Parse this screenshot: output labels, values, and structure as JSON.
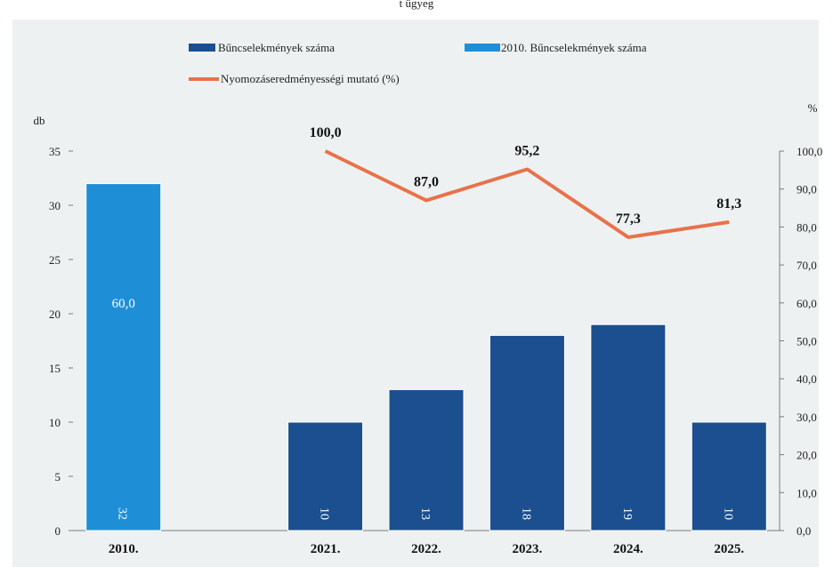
{
  "header_fragment": "t ügyeg",
  "legend": {
    "series1": "Bűncselekmények száma",
    "series2": "2010. Bűncselekmények száma",
    "series3": "Nyomozáseredményességi mutató (%)"
  },
  "axis_units": {
    "left": "db",
    "right": "%"
  },
  "colors": {
    "bar_2010": "#1E8FD6",
    "bar_years": "#1B4F8F",
    "line": "#E8724A",
    "plot_bg": "#EEF1F1"
  },
  "chart_data": {
    "type": "bar",
    "categories": [
      "2010.",
      "",
      "2021.",
      "2022.",
      "2023.",
      "2024.",
      "2025."
    ],
    "series": [
      {
        "name": "Bűncselekmények száma",
        "values": [
          null,
          null,
          10,
          13,
          18,
          19,
          10
        ],
        "labels": [
          "",
          "",
          "10",
          "13",
          "18",
          "19",
          "10"
        ]
      },
      {
        "name": "2010. Bűncselekmények száma",
        "values": [
          32,
          null,
          null,
          null,
          null,
          null,
          null
        ],
        "labels": [
          "32",
          "",
          "",
          "",
          "",
          "",
          ""
        ]
      },
      {
        "name": "Nyomozáseredményességi mutató (%)",
        "axis": "right",
        "values": [
          60.0,
          null,
          100.0,
          87.0,
          95.2,
          77.3,
          81.3
        ],
        "labels": [
          "60,0",
          "",
          "100,0",
          "87,0",
          "95,2",
          "77,3",
          "81,3"
        ]
      }
    ],
    "ylim": [
      0,
      35
    ],
    "y_ticks": [
      "0",
      "5",
      "10",
      "15",
      "20",
      "25",
      "30",
      "35"
    ],
    "y2lim": [
      0,
      100
    ],
    "y2_ticks": [
      "0,0",
      "10,0",
      "20,0",
      "30,0",
      "40,0",
      "50,0",
      "60,0",
      "70,0",
      "80,0",
      "90,0",
      "100,0"
    ],
    "ylabel": "db",
    "y2label": "%",
    "legend_position": "top",
    "grid": false
  }
}
